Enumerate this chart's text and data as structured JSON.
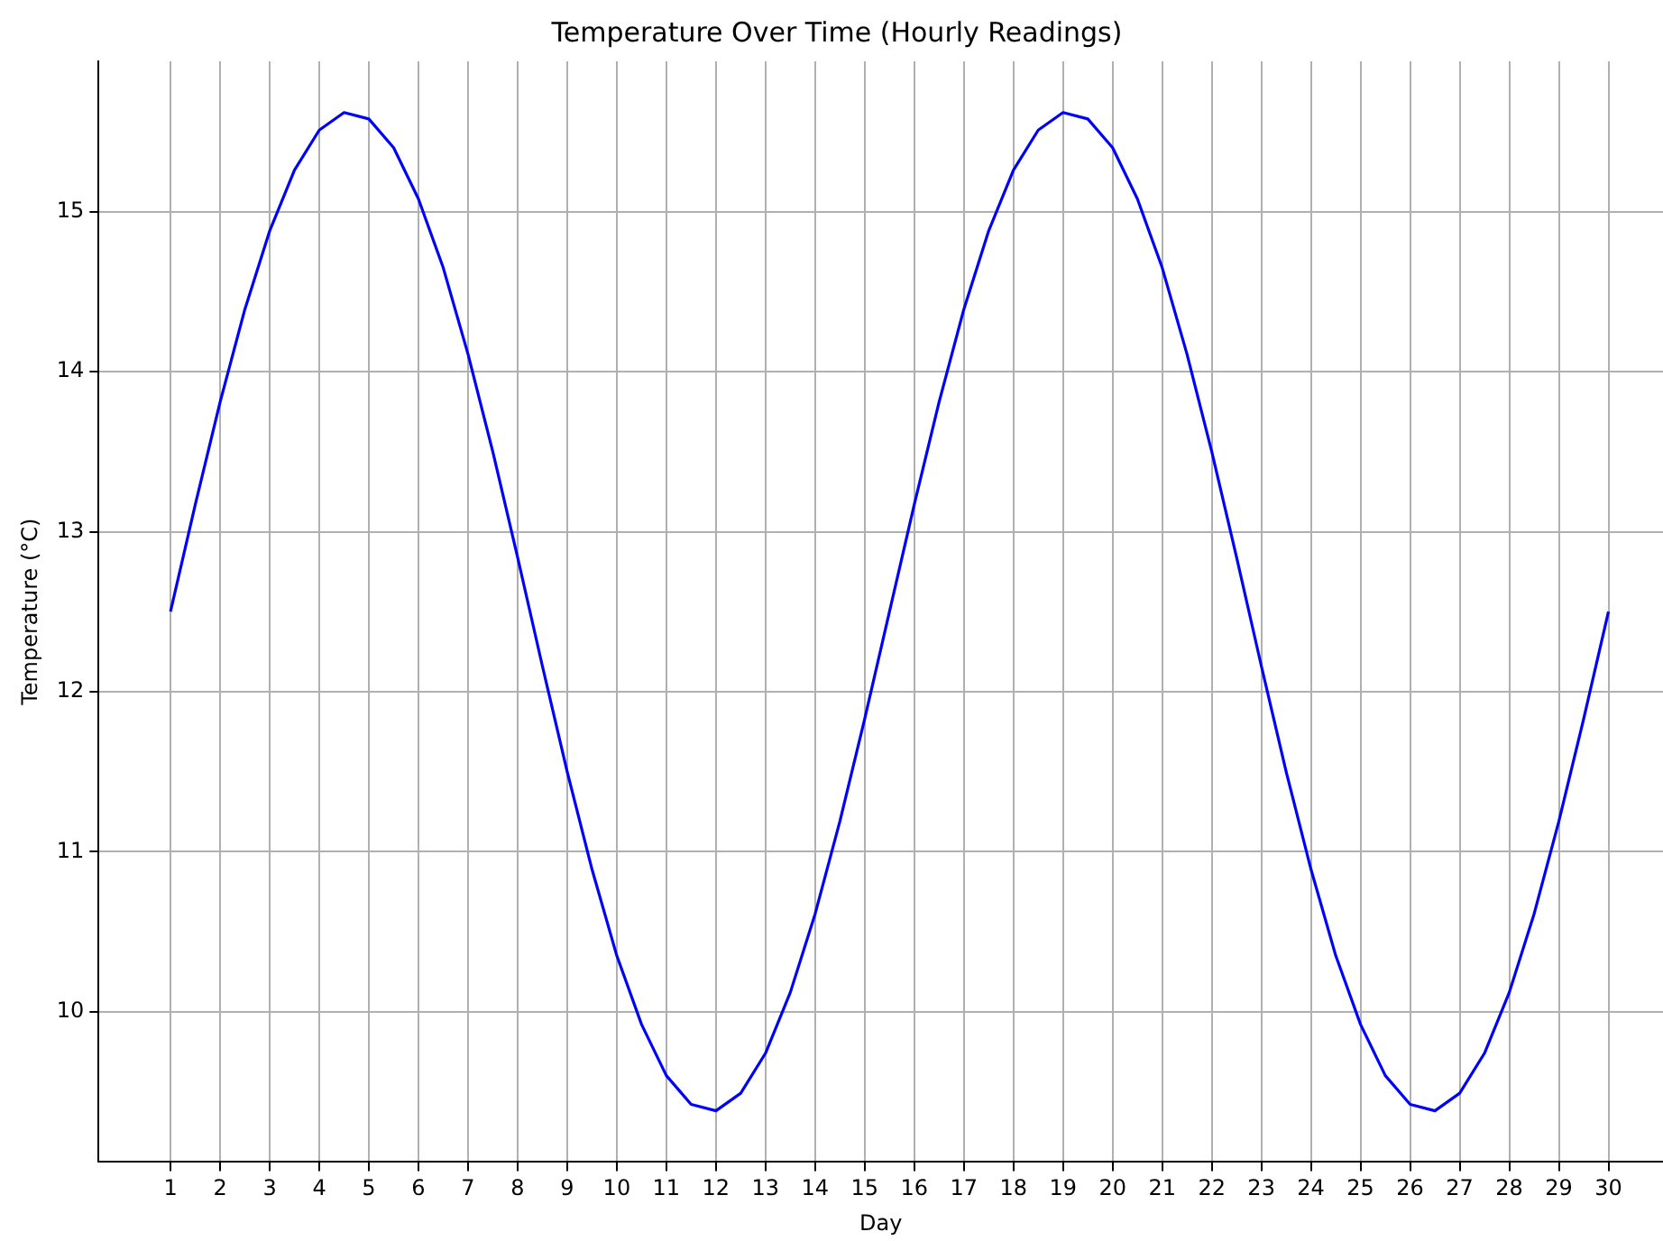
{
  "chart_data": {
    "type": "line",
    "title": "Temperature Over Time (Hourly Readings)",
    "xlabel": "Day",
    "ylabel": "Temperature (°C)",
    "x": [
      1,
      1.5,
      2,
      2.5,
      3,
      3.5,
      4,
      4.5,
      5,
      5.5,
      6,
      6.5,
      7,
      7.5,
      8,
      8.5,
      9,
      9.5,
      10,
      10.5,
      11,
      11.5,
      12,
      12.5,
      13,
      13.5,
      14,
      14.5,
      15,
      15.5,
      16,
      16.5,
      17,
      17.5,
      18,
      18.5,
      19,
      19.5,
      20,
      20.5,
      21,
      21.5,
      22,
      22.5,
      23,
      23.5,
      24,
      24.5,
      25,
      25.5,
      26,
      26.5,
      27,
      27.5,
      28,
      28.5,
      29,
      29.5,
      30
    ],
    "series": [
      {
        "color": "#0000ff",
        "values": [
          12.5,
          13.17,
          13.81,
          14.39,
          14.88,
          15.26,
          15.51,
          15.62,
          15.58,
          15.4,
          15.08,
          14.65,
          14.11,
          13.5,
          12.84,
          12.16,
          11.5,
          10.89,
          10.35,
          9.92,
          9.6,
          9.42,
          9.38,
          9.49,
          9.74,
          10.12,
          10.61,
          11.19,
          11.83,
          12.5,
          13.17,
          13.81,
          14.39,
          14.88,
          15.26,
          15.51,
          15.62,
          15.58,
          15.4,
          15.08,
          14.65,
          14.11,
          13.5,
          12.84,
          12.16,
          11.5,
          10.89,
          10.35,
          9.92,
          9.6,
          9.42,
          9.38,
          9.49,
          9.74,
          10.12,
          10.61,
          11.19,
          11.83,
          12.5
        ]
      }
    ],
    "xlim": [
      -0.45,
      31.1
    ],
    "ylim": [
      9.06,
      15.94
    ],
    "xticks": [
      1,
      2,
      3,
      4,
      5,
      6,
      7,
      8,
      9,
      10,
      11,
      12,
      13,
      14,
      15,
      16,
      17,
      18,
      19,
      20,
      21,
      22,
      23,
      24,
      25,
      26,
      27,
      28,
      29,
      30
    ],
    "yticks": [
      10,
      11,
      12,
      13,
      14,
      15
    ],
    "grid": true,
    "legend": false,
    "marker": "none",
    "line_style": "solid"
  }
}
